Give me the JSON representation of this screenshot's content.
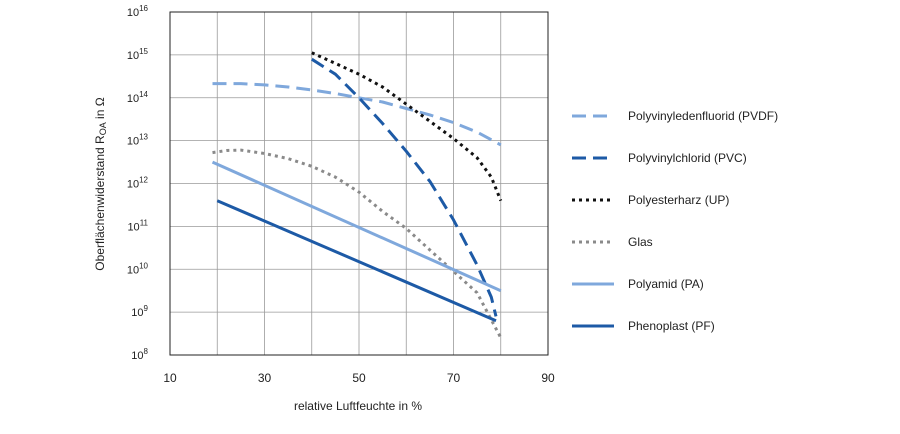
{
  "chart_data": {
    "type": "line",
    "xlabel": "relative Luftfeuchte in %",
    "ylabel": "Oberflächenwiderstand R",
    "ylabel_sub": "OA",
    "ylabel_suffix": " in Ω",
    "log_y": true,
    "xlim": [
      10,
      90
    ],
    "ylim_exp": [
      8,
      16
    ],
    "x_ticks": [
      10,
      30,
      50,
      70,
      90
    ],
    "y_tick_base": "10",
    "y_tick_exps": [
      "8",
      "9",
      "10",
      "11",
      "12",
      "13",
      "14",
      "15",
      "16"
    ],
    "grid": true,
    "legend_position": "right",
    "series": [
      {
        "name": "Polyvinyledenfluorid (PVDF)",
        "color": "#7fa8dc",
        "style": "dashed",
        "x": [
          19,
          25,
          30,
          35,
          40,
          45,
          50,
          55,
          60,
          65,
          70,
          75,
          80
        ],
        "y_exp": [
          14.33,
          14.33,
          14.3,
          14.25,
          14.18,
          14.1,
          14.0,
          13.9,
          13.75,
          13.6,
          13.42,
          13.2,
          12.9
        ]
      },
      {
        "name": "Polyvinylchlorid (PVC)",
        "color": "#1d5aa6",
        "style": "dashed",
        "x": [
          40,
          45,
          50,
          55,
          60,
          65,
          70,
          75,
          78,
          79
        ],
        "y_exp": [
          14.9,
          14.55,
          14.0,
          13.4,
          12.75,
          12.05,
          11.15,
          10.1,
          9.35,
          8.9
        ]
      },
      {
        "name": "Polyesterharz (UP)",
        "color": "#111111",
        "style": "dotted",
        "x": [
          40,
          45,
          50,
          55,
          60,
          65,
          70,
          75,
          78,
          80
        ],
        "y_exp": [
          15.05,
          14.8,
          14.55,
          14.25,
          13.85,
          13.45,
          13.05,
          12.6,
          12.15,
          11.6
        ]
      },
      {
        "name": "Glas",
        "color": "#8a8a8a",
        "style": "dotted",
        "x": [
          19,
          22,
          25,
          30,
          35,
          40,
          45,
          50,
          55,
          60,
          65,
          70,
          75,
          80
        ],
        "y_exp": [
          12.72,
          12.77,
          12.78,
          12.7,
          12.58,
          12.4,
          12.15,
          11.8,
          11.35,
          10.95,
          10.45,
          9.95,
          9.45,
          8.4
        ]
      },
      {
        "name": "Polyamid (PA)",
        "color": "#7fa8dc",
        "style": "solid",
        "x": [
          19,
          80
        ],
        "y_exp": [
          12.5,
          9.5
        ]
      },
      {
        "name": "Phenoplast (PF)",
        "color": "#1d5aa6",
        "style": "solid",
        "x": [
          20,
          79
        ],
        "y_exp": [
          11.6,
          8.8
        ]
      }
    ]
  }
}
